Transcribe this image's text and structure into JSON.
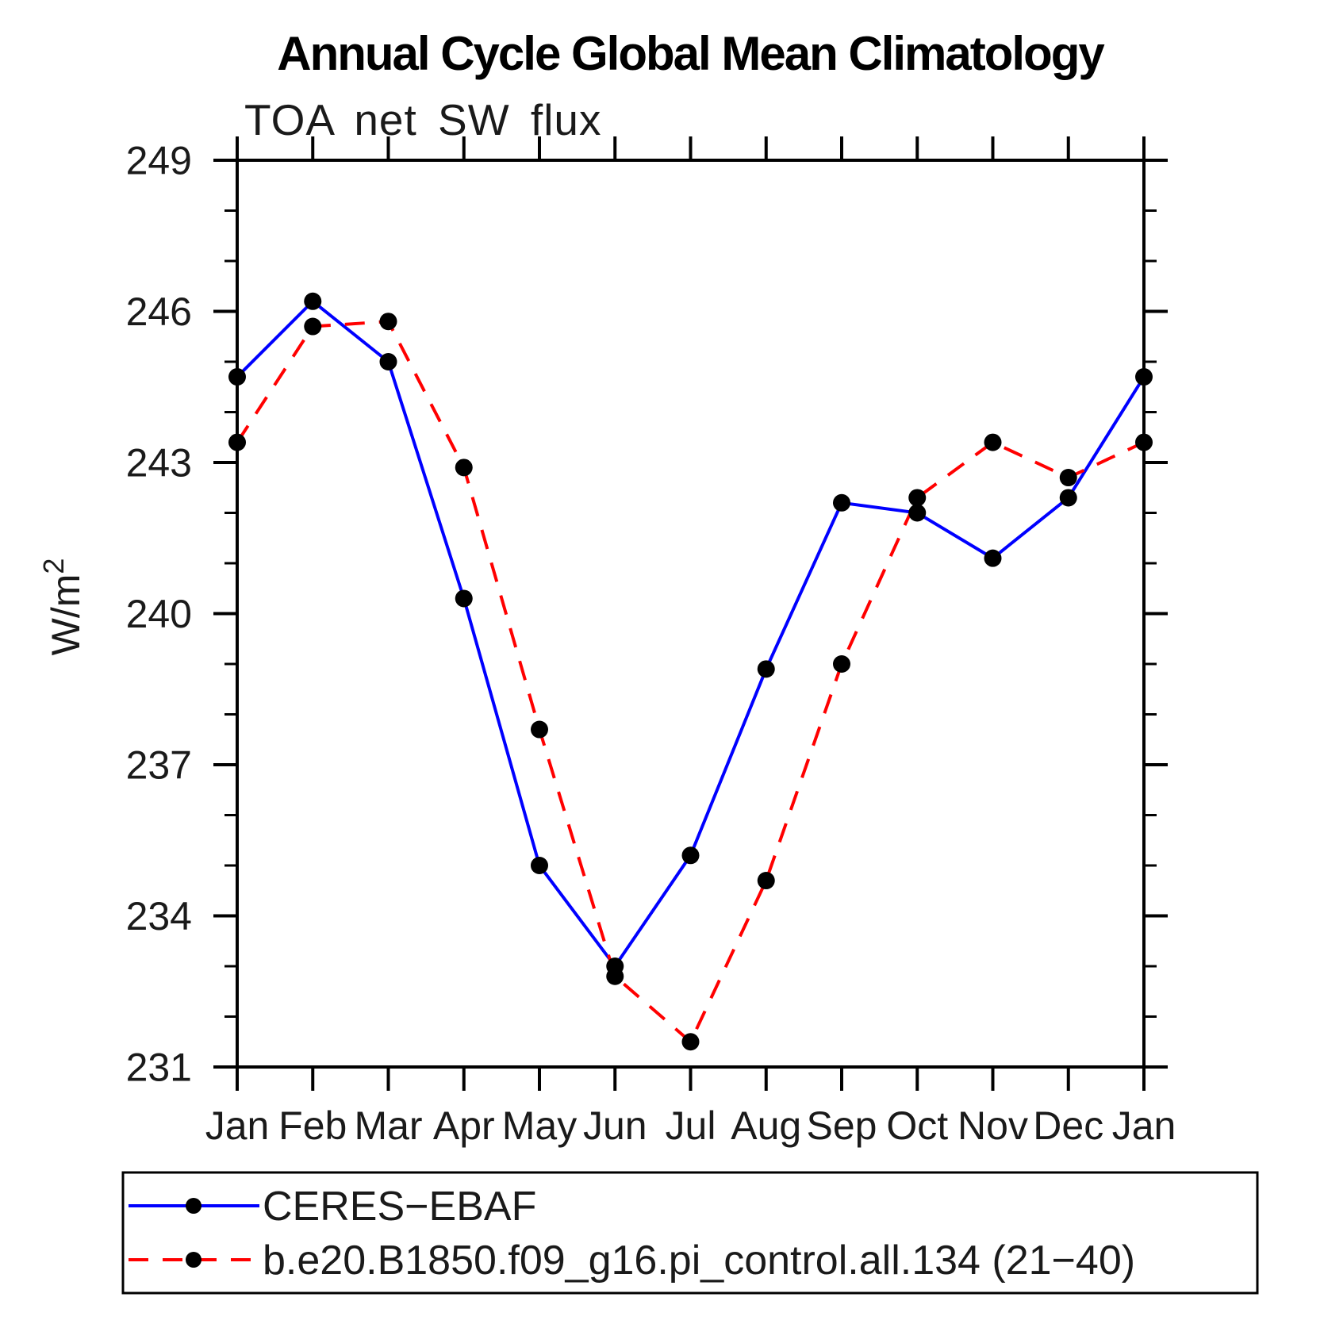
{
  "title": "Annual Cycle Global Mean Climatology",
  "subtitle": "TOA net SW flux",
  "ylabel": "W/m²",
  "colors": {
    "ceres_line": "#0000ff",
    "model_line": "#ff0000",
    "marker": "#000000",
    "axis": "#000000",
    "background": "#ffffff"
  },
  "chart_data": {
    "type": "line",
    "categories": [
      "Jan",
      "Feb",
      "Mar",
      "Apr",
      "May",
      "Jun",
      "Jul",
      "Aug",
      "Sep",
      "Oct",
      "Nov",
      "Dec",
      "Jan"
    ],
    "series": [
      {
        "id": "ceres-ebaf",
        "name": "CERES−EBAF",
        "color": "#0000ff",
        "line_style": "solid",
        "marker": "circle",
        "marker_color": "#000000",
        "values": [
          244.7,
          246.2,
          245.0,
          240.3,
          235.0,
          233.0,
          235.2,
          238.9,
          242.2,
          242.0,
          241.1,
          242.3,
          244.7
        ]
      },
      {
        "id": "model-b-e20-b1850",
        "name": "b.e20.B1850.f09_g16.pi_control.all.134 (21−40)",
        "color": "#ff0000",
        "line_style": "dashed",
        "marker": "circle",
        "marker_color": "#000000",
        "values": [
          243.4,
          245.7,
          245.8,
          242.9,
          237.7,
          232.8,
          231.5,
          234.7,
          239.0,
          242.3,
          243.4,
          242.7,
          243.4
        ]
      }
    ],
    "xlabel": "",
    "ylabel": "W/m²",
    "ylim": [
      231,
      249
    ],
    "yticks": [
      231,
      234,
      237,
      240,
      243,
      246,
      249
    ],
    "minor_tick_step": 1,
    "grid": false,
    "legend_position": "bottom"
  }
}
